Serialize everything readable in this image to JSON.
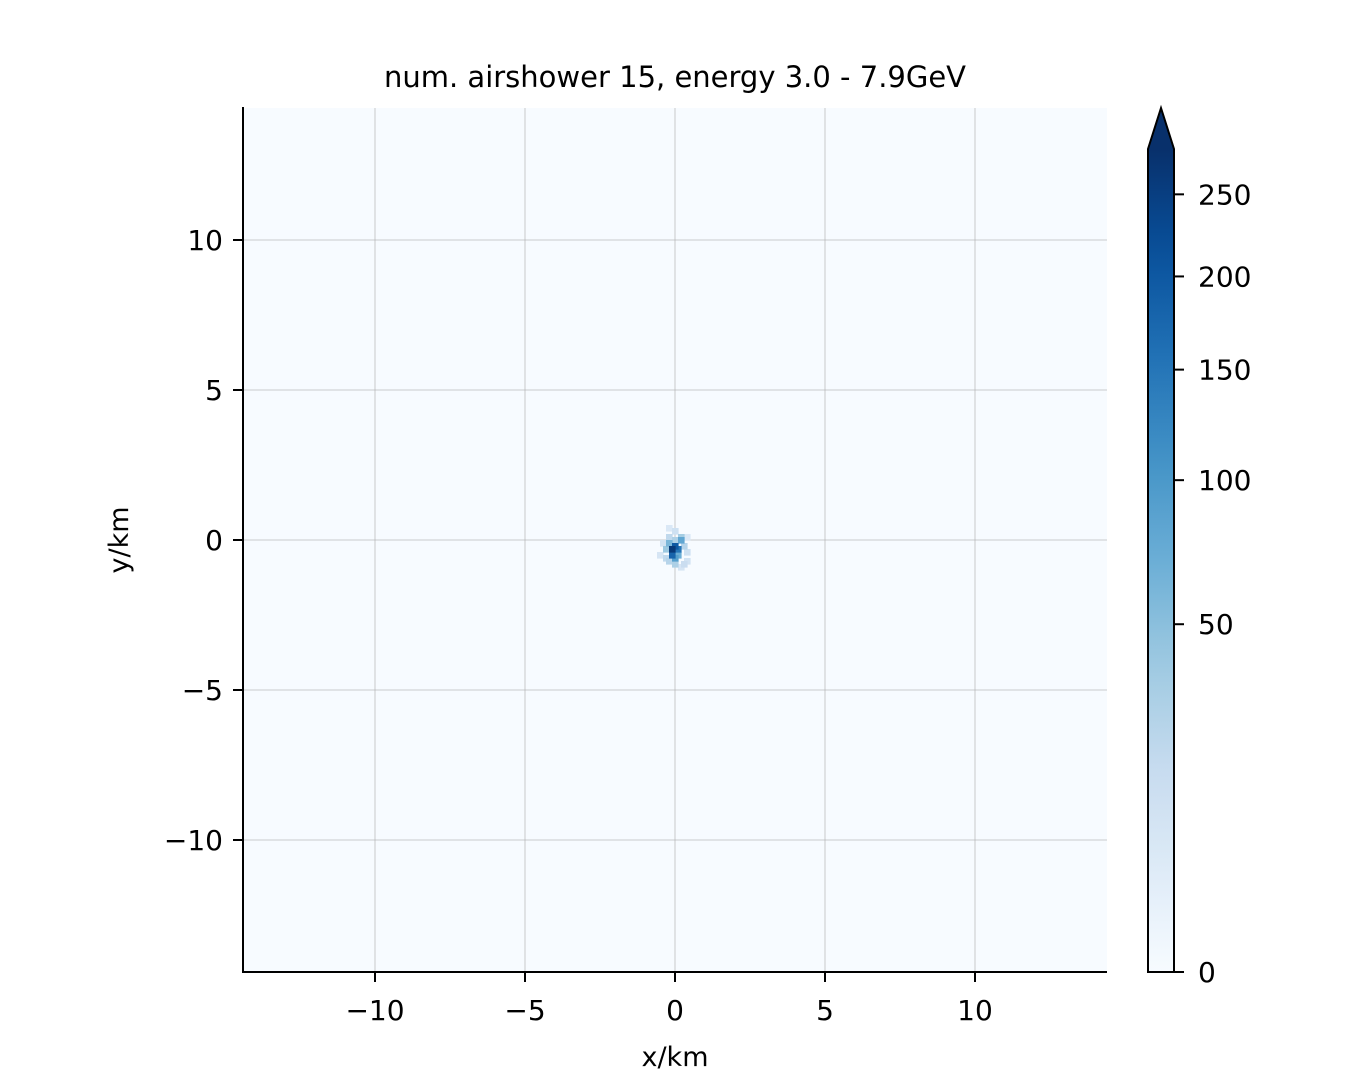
{
  "chart_data": {
    "type": "heatmap",
    "title": "num. airshower 15, energy 3.0 - 7.9GeV",
    "xlabel": "x/km",
    "ylabel": "y/km",
    "xlim": [
      -14.4,
      14.4
    ],
    "ylim": [
      -14.4,
      14.4
    ],
    "xticks": [
      -10,
      -5,
      0,
      5,
      10
    ],
    "yticks": [
      -10,
      -5,
      0,
      5,
      10
    ],
    "x_tick_labels": [
      "−10",
      "−5",
      "0",
      "5",
      "10"
    ],
    "y_tick_labels": [
      "−10",
      "−5",
      "0",
      "5",
      "10"
    ],
    "grid": true,
    "colormap": "Blues",
    "background_color": "#f7fbff",
    "colorbar": {
      "range": [
        0,
        280
      ],
      "scale": "sqrt",
      "extend": "max",
      "ticks": [
        0,
        50,
        100,
        150,
        200,
        250
      ],
      "tick_labels": [
        "0",
        "50",
        "100",
        "150",
        "200",
        "250"
      ]
    },
    "cells": [
      {
        "x": 0.0,
        "y": 0.0,
        "v": 30
      },
      {
        "x": -0.2,
        "y": 0.1,
        "v": 20
      },
      {
        "x": 0.2,
        "y": 0.1,
        "v": 35
      },
      {
        "x": -0.2,
        "y": -0.1,
        "v": 60
      },
      {
        "x": 0.0,
        "y": -0.2,
        "v": 200
      },
      {
        "x": -0.1,
        "y": -0.3,
        "v": 260
      },
      {
        "x": 0.1,
        "y": -0.3,
        "v": 150
      },
      {
        "x": -0.1,
        "y": -0.5,
        "v": 180
      },
      {
        "x": 0.0,
        "y": -0.6,
        "v": 90
      },
      {
        "x": 0.1,
        "y": -0.5,
        "v": 70
      },
      {
        "x": -0.3,
        "y": -0.3,
        "v": 40
      },
      {
        "x": 0.3,
        "y": -0.2,
        "v": 25
      },
      {
        "x": -0.3,
        "y": -0.6,
        "v": 20
      },
      {
        "x": 0.2,
        "y": 0.0,
        "v": 80
      },
      {
        "x": -0.4,
        "y": -0.1,
        "v": 10
      },
      {
        "x": 0.4,
        "y": -0.4,
        "v": 12
      },
      {
        "x": 0.3,
        "y": -0.8,
        "v": 15
      },
      {
        "x": 0.2,
        "y": -0.9,
        "v": 8
      },
      {
        "x": -0.5,
        "y": -0.5,
        "v": 8
      },
      {
        "x": 0.0,
        "y": 0.3,
        "v": 12
      },
      {
        "x": -0.2,
        "y": 0.4,
        "v": 6
      },
      {
        "x": 0.4,
        "y": 0.1,
        "v": 6
      },
      {
        "x": 0.0,
        "y": -0.8,
        "v": 30
      },
      {
        "x": -0.2,
        "y": -0.7,
        "v": 25
      },
      {
        "x": 0.4,
        "y": -0.7,
        "v": 10
      }
    ]
  }
}
